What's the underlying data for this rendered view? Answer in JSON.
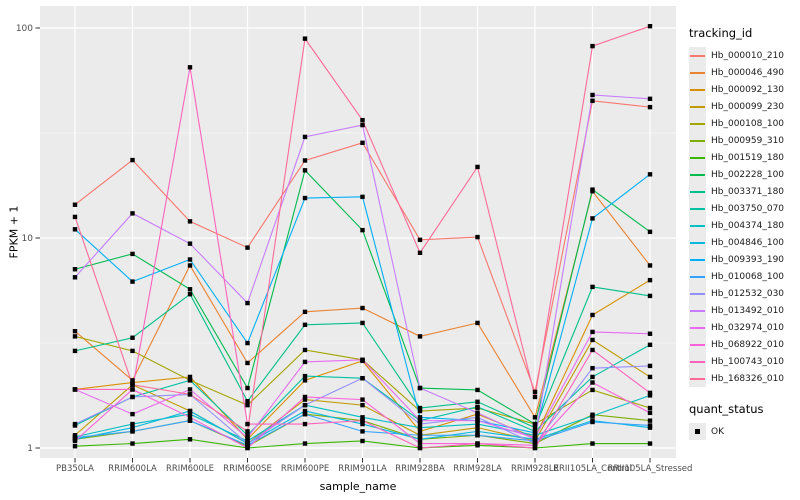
{
  "figure": {
    "background": "#FFFFFF",
    "panel_background": "#EBEBEB",
    "grid_color": "#FFFFFF",
    "tick_color": "#333333",
    "tick_label_color": "#4D4D4D",
    "axis_title_color": "#000000",
    "point_color": "#000000",
    "legend_key_background": "#EBEBEB"
  },
  "chart_data": {
    "type": "line",
    "title": "",
    "xlabel": "sample_name",
    "ylabel": "FPKM + 1",
    "y_scale": "log10",
    "ylim": [
      0.9,
      127
    ],
    "y_ticks": [
      1,
      10,
      100
    ],
    "y_minor_ticks": [
      3.162,
      31.623
    ],
    "grid": "on",
    "legend_position": "right",
    "marker": "black-square",
    "categories": [
      "PB350LA",
      "RRIM600LA",
      "RRIM600LE",
      "RRIM600SE",
      "RRIM600PE",
      "RRIM901LA",
      "RRIM928BA",
      "RRIM928LA",
      "RRIM928LE",
      "RRII105LA_Control",
      "RRII105LA_Stressed"
    ],
    "legend": {
      "series_title": "tracking_id",
      "status_title": "quant_status",
      "status_label": "OK"
    },
    "series": [
      {
        "name": "Hb_000010_210",
        "color": "#F8766D",
        "values": [
          14.4,
          23.5,
          12.0,
          9.0,
          23.4,
          28.4,
          9.8,
          10.1,
          1.85,
          45.0,
          42.0
        ]
      },
      {
        "name": "Hb_000046_490",
        "color": "#EA8331",
        "values": [
          3.6,
          2.1,
          7.4,
          2.54,
          4.45,
          4.64,
          3.4,
          3.94,
          1.4,
          16.7,
          7.4
        ]
      },
      {
        "name": "Hb_000092_130",
        "color": "#D89000",
        "values": [
          1.9,
          2.05,
          2.18,
          1.1,
          2.1,
          2.6,
          1.2,
          1.45,
          1.12,
          4.3,
          6.3
        ]
      },
      {
        "name": "Hb_000099_230",
        "color": "#C09B00",
        "values": [
          1.15,
          2.0,
          1.5,
          1.05,
          1.7,
          1.6,
          1.15,
          1.25,
          1.08,
          3.27,
          2.18
        ]
      },
      {
        "name": "Hb_000108_100",
        "color": "#A3A500",
        "values": [
          3.4,
          2.9,
          2.1,
          1.6,
          2.93,
          2.63,
          1.5,
          1.55,
          1.3,
          1.89,
          1.55
        ]
      },
      {
        "name": "Hb_000959_310",
        "color": "#7CAE00",
        "values": [
          1.1,
          1.2,
          1.35,
          1.02,
          1.45,
          1.35,
          1.1,
          1.15,
          1.05,
          1.44,
          1.35
        ]
      },
      {
        "name": "Hb_001519_180",
        "color": "#39B600",
        "values": [
          1.02,
          1.05,
          1.1,
          1.0,
          1.05,
          1.08,
          1.0,
          1.03,
          1.0,
          1.05,
          1.05
        ]
      },
      {
        "name": "Hb_002228_100",
        "color": "#00BB4E",
        "values": [
          7.1,
          8.4,
          5.7,
          1.93,
          21.0,
          10.9,
          1.93,
          1.89,
          1.3,
          17.0,
          10.7
        ]
      },
      {
        "name": "Hb_003371_180",
        "color": "#00C087",
        "values": [
          2.9,
          3.35,
          5.4,
          1.67,
          3.86,
          3.94,
          1.55,
          1.66,
          1.25,
          5.85,
          5.3
        ]
      },
      {
        "name": "Hb_003750_070",
        "color": "#00C1A3",
        "values": [
          1.28,
          1.75,
          2.1,
          1.15,
          2.2,
          2.15,
          1.35,
          1.57,
          1.2,
          2.18,
          3.1
        ]
      },
      {
        "name": "Hb_004374_180",
        "color": "#00BFC4",
        "values": [
          1.13,
          1.3,
          1.45,
          1.08,
          1.6,
          1.4,
          1.25,
          1.3,
          1.15,
          1.42,
          1.78
        ]
      },
      {
        "name": "Hb_004846_100",
        "color": "#00BAE0",
        "values": [
          1.1,
          1.25,
          1.5,
          1.05,
          1.5,
          1.3,
          1.1,
          1.2,
          1.1,
          1.35,
          1.25
        ]
      },
      {
        "name": "Hb_009393_190",
        "color": "#00B0F6",
        "values": [
          11.0,
          6.2,
          7.9,
          3.16,
          15.5,
          15.7,
          1.4,
          1.35,
          1.18,
          12.4,
          20.1
        ]
      },
      {
        "name": "Hb_010068_100",
        "color": "#35A2FF",
        "values": [
          1.12,
          1.2,
          1.35,
          1.03,
          1.45,
          1.2,
          1.15,
          1.15,
          1.08,
          1.33,
          1.28
        ]
      },
      {
        "name": "Hb_012532_030",
        "color": "#9590FF",
        "values": [
          1.3,
          1.75,
          1.8,
          1.05,
          1.6,
          2.15,
          1.3,
          1.4,
          1.05,
          2.4,
          2.46
        ]
      },
      {
        "name": "Hb_013492_010",
        "color": "#C77CFF",
        "values": [
          6.5,
          13.1,
          9.4,
          4.9,
          30.3,
          34.5,
          1.93,
          1.47,
          1.1,
          48.0,
          46.0
        ]
      },
      {
        "name": "Hb_032974_010",
        "color": "#E76BF3",
        "values": [
          1.9,
          1.45,
          1.9,
          1.12,
          2.57,
          2.63,
          1.35,
          1.35,
          1.12,
          3.57,
          3.5
        ]
      },
      {
        "name": "Hb_068922_010",
        "color": "#FA62DB",
        "values": [
          1.08,
          1.9,
          1.4,
          1.0,
          1.75,
          1.7,
          1.05,
          1.05,
          1.03,
          2.05,
          1.47
        ]
      },
      {
        "name": "Hb_100743_010",
        "color": "#FF62BC",
        "values": [
          1.9,
          1.9,
          65.0,
          1.3,
          1.3,
          1.35,
          1.0,
          1.05,
          1.0,
          2.93,
          1.83
        ]
      },
      {
        "name": "Hb_168326_010",
        "color": "#FF6A98",
        "values": [
          12.6,
          2.0,
          1.8,
          1.2,
          89.0,
          36.4,
          8.5,
          21.8,
          1.75,
          82.0,
          102.0
        ]
      }
    ]
  }
}
